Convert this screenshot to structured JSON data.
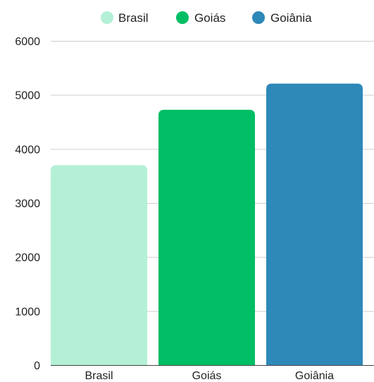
{
  "chart_data": {
    "type": "bar",
    "categories": [
      "Brasil",
      "Goiás",
      "Goiânia"
    ],
    "values": [
      3700,
      4725,
      5210
    ],
    "colors": [
      "#b3f0d5",
      "#00be64",
      "#2e88b8"
    ],
    "legend": {
      "position": "top",
      "items": [
        {
          "label": "Brasil",
          "color": "#b3f0d5"
        },
        {
          "label": "Goiás",
          "color": "#00be64"
        },
        {
          "label": "Goiânia",
          "color": "#2e88b8"
        }
      ]
    },
    "yticks": [
      "0",
      "1000",
      "2000",
      "3000",
      "4000",
      "5000",
      "6000"
    ],
    "ylim": [
      0,
      6000
    ],
    "grid": true
  }
}
